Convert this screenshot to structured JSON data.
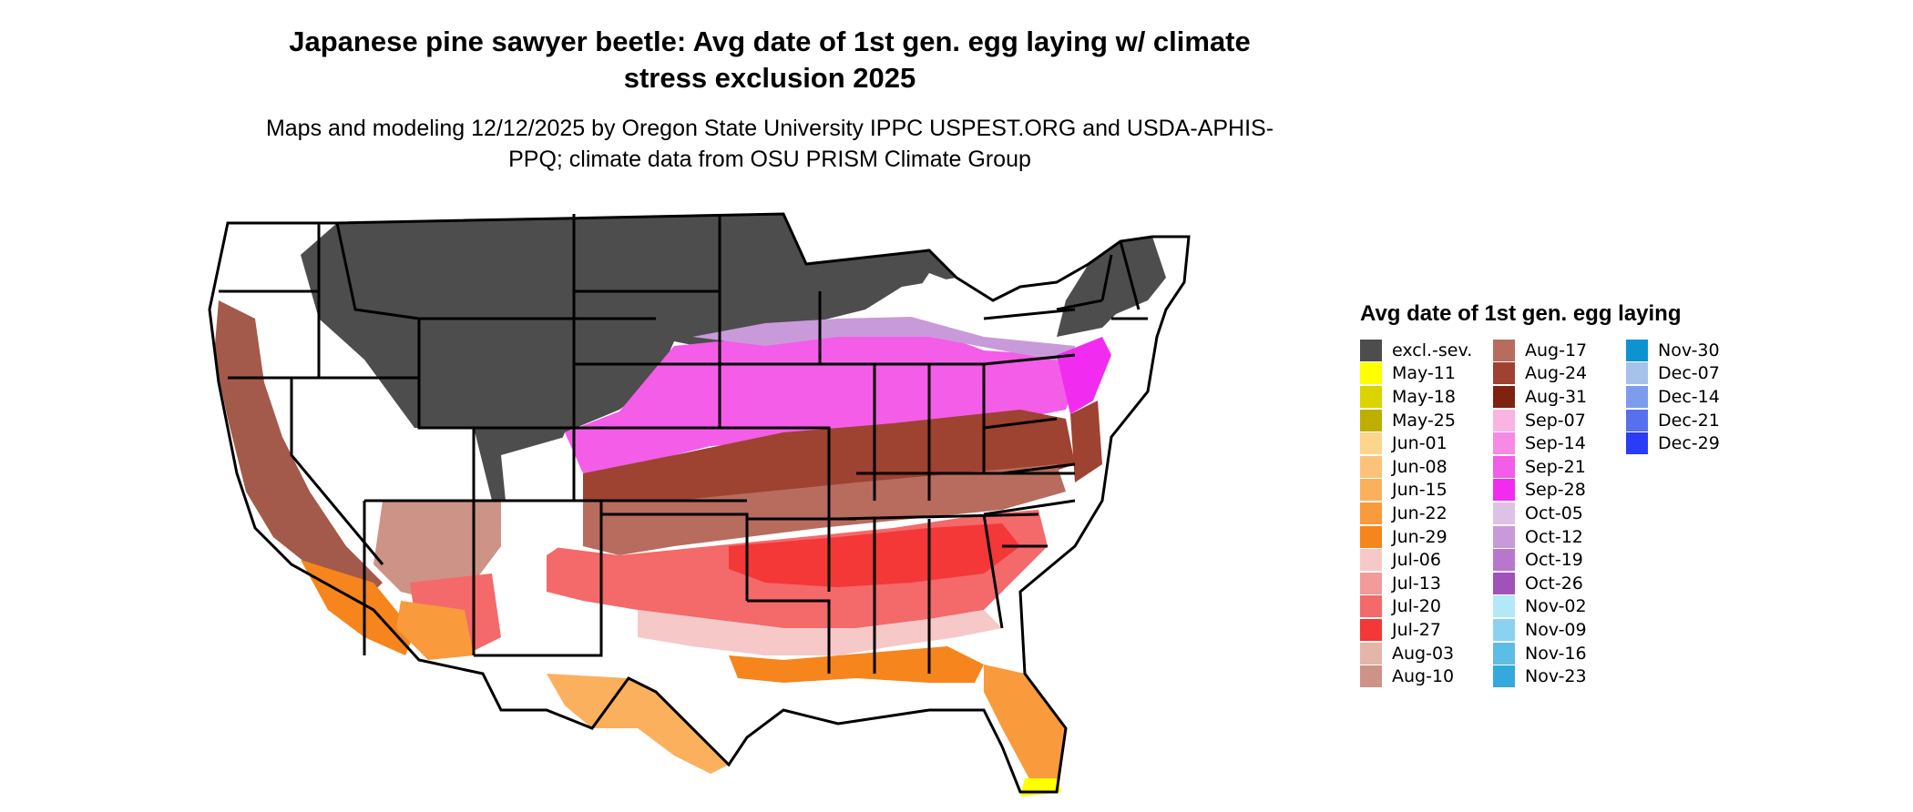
{
  "title": "Japanese pine sawyer beetle: Avg date of 1st gen. egg laying w/ climate stress exclusion 2025",
  "subtitle": "Maps and modeling 12/12/2025 by Oregon State University IPPC USPEST.ORG and USDA-APHIS-PPQ; climate data from OSU PRISM Climate Group",
  "legend": {
    "title": "Avg date of 1st gen. egg laying",
    "columns": [
      [
        {
          "label": "excl.-sev.",
          "color": "#4d4d4d"
        },
        {
          "label": "May-11",
          "color": "#ffff00"
        },
        {
          "label": "May-18",
          "color": "#dcd400"
        },
        {
          "label": "May-25",
          "color": "#bfae00"
        },
        {
          "label": "Jun-01",
          "color": "#fdd58d"
        },
        {
          "label": "Jun-08",
          "color": "#fcc27a"
        },
        {
          "label": "Jun-15",
          "color": "#fbb05e"
        },
        {
          "label": "Jun-22",
          "color": "#f99a3c"
        },
        {
          "label": "Jun-29",
          "color": "#f5851c"
        },
        {
          "label": "Jul-06",
          "color": "#f6c8c8"
        },
        {
          "label": "Jul-13",
          "color": "#f39a9a"
        },
        {
          "label": "Jul-20",
          "color": "#f46969"
        },
        {
          "label": "Jul-27",
          "color": "#f43737"
        },
        {
          "label": "Aug-03",
          "color": "#e4b5a9"
        },
        {
          "label": "Aug-10",
          "color": "#cd9386"
        }
      ],
      [
        {
          "label": "Aug-17",
          "color": "#b76c5e"
        },
        {
          "label": "Aug-24",
          "color": "#9e4231"
        },
        {
          "label": "Aug-31",
          "color": "#7e2211"
        },
        {
          "label": "Sep-07",
          "color": "#f9b4e2"
        },
        {
          "label": "Sep-14",
          "color": "#f68ae4"
        },
        {
          "label": "Sep-21",
          "color": "#f45de8"
        },
        {
          "label": "Sep-28",
          "color": "#f12cf0"
        },
        {
          "label": "Oct-05",
          "color": "#dcc3e6"
        },
        {
          "label": "Oct-12",
          "color": "#c99ad9"
        },
        {
          "label": "Oct-19",
          "color": "#b877cc"
        },
        {
          "label": "Oct-26",
          "color": "#a152b9"
        },
        {
          "label": "Nov-02",
          "color": "#b3e8f9"
        },
        {
          "label": "Nov-09",
          "color": "#8bd2f0"
        },
        {
          "label": "Nov-16",
          "color": "#5ebde7"
        },
        {
          "label": "Nov-23",
          "color": "#35a9dc"
        }
      ],
      [
        {
          "label": "Nov-30",
          "color": "#0e93d2"
        },
        {
          "label": "Dec-07",
          "color": "#a6c2ea"
        },
        {
          "label": "Dec-14",
          "color": "#7e9cec"
        },
        {
          "label": "Dec-21",
          "color": "#5670ef"
        },
        {
          "label": "Dec-29",
          "color": "#2a3cf5"
        }
      ]
    ]
  }
}
